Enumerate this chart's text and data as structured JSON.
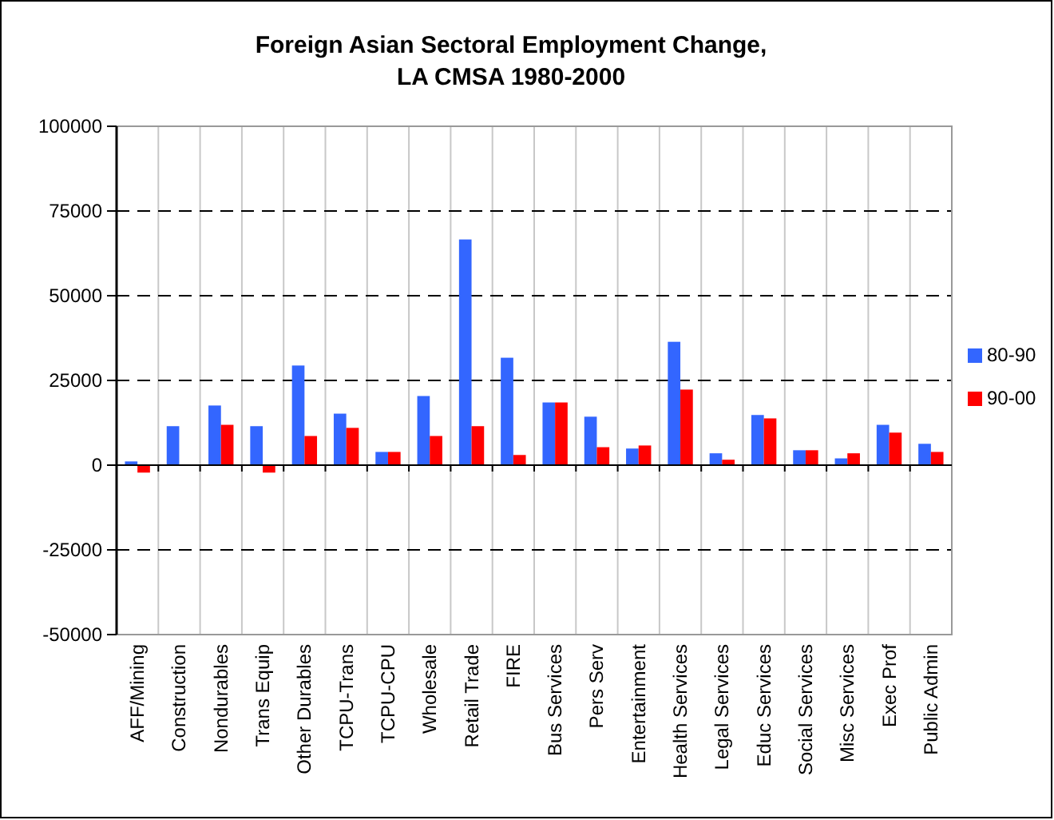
{
  "chart_data": {
    "type": "bar",
    "title": "Foreign Asian Sectoral Employment Change, LA CMSA 1980-2000",
    "categories": [
      "AFF/Mining",
      "Construction",
      "Nondurables",
      "Trans Equip",
      "Other Durables",
      "TCPU-Trans",
      "TCPU-CPU",
      "Wholesale",
      "Retail Trade",
      "FIRE",
      "Bus Services",
      "Pers Serv",
      "Entertainment",
      "Health Services",
      "Legal Services",
      "Educ Services",
      "Social Services",
      "Misc Services",
      "Exec Prof",
      "Public Admin"
    ],
    "series": [
      {
        "name": "80-90",
        "color": "#3366ff",
        "values": [
          1100,
          11500,
          17600,
          11500,
          29400,
          15200,
          3900,
          20400,
          66600,
          31700,
          18500,
          14300,
          4900,
          36400,
          3500,
          14800,
          4400,
          2000,
          11900,
          6300
        ]
      },
      {
        "name": "90-00",
        "color": "#ff0000",
        "values": [
          -2200,
          0,
          11900,
          -2200,
          8600,
          11000,
          3900,
          8600,
          11500,
          3000,
          18500,
          5300,
          5800,
          22300,
          1600,
          13800,
          4400,
          3500,
          9600,
          3900
        ]
      }
    ],
    "ylim": [
      -50000,
      100000
    ],
    "yticks": [
      -50000,
      -25000,
      0,
      25000,
      50000,
      75000,
      100000
    ],
    "grid": true,
    "legend": "right"
  }
}
